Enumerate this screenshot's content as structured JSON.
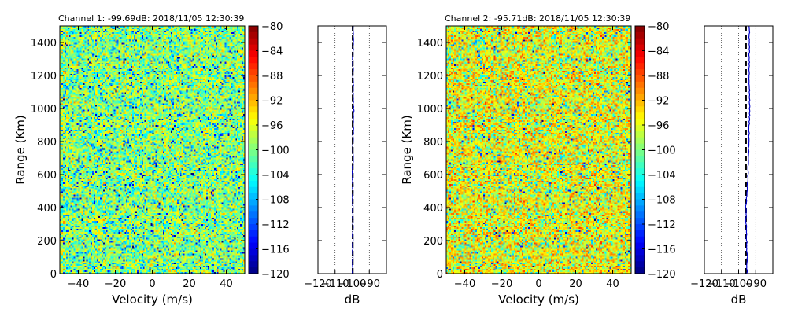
{
  "chart_data": [
    {
      "type": "heatmap",
      "title": "Channel 1: -99.69dB: 2018/11/05 12:30:39",
      "xlabel": "Velocity (m/s)",
      "ylabel": "Range (Km)",
      "xlim": [
        -50,
        50
      ],
      "ylim": [
        0,
        1500
      ],
      "xticks": [
        "−40",
        "−20",
        "0",
        "20",
        "40"
      ],
      "yticks": [
        "0",
        "200",
        "400",
        "600",
        "800",
        "1000",
        "1200",
        "1400"
      ],
      "colorbar": {
        "range": [
          -120,
          -80
        ],
        "ticks": [
          "−80",
          "−84",
          "−88",
          "−92",
          "−96",
          "−100",
          "−104",
          "−108",
          "−112",
          "−116",
          "−120"
        ],
        "colormap": "jet"
      },
      "mean_level_db": -99.69,
      "profile": {
        "xlabel": "dB",
        "xlim": [
          -120,
          -80
        ],
        "xticks": [
          "−120",
          "−110",
          "−100",
          "−90"
        ],
        "line_color": "#0000cc",
        "reference_db": -99.69,
        "range_km": [
          0,
          100,
          200,
          300,
          400,
          500,
          600,
          700,
          800,
          900,
          1000,
          1100,
          1200,
          1300,
          1400,
          1500
        ],
        "db_values": [
          -99.8,
          -99.6,
          -99.7,
          -99.5,
          -99.7,
          -99.6,
          -99.8,
          -99.5,
          -99.6,
          -99.3,
          -99.2,
          -99.4,
          -99.5,
          -99.6,
          -99.4,
          -99.5
        ]
      }
    },
    {
      "type": "heatmap",
      "title": "Channel 2: -95.71dB: 2018/11/05 12:30:39",
      "xlabel": "Velocity (m/s)",
      "ylabel": "Range (Km)",
      "xlim": [
        -50,
        50
      ],
      "ylim": [
        0,
        1500
      ],
      "xticks": [
        "−40",
        "−20",
        "0",
        "20",
        "40"
      ],
      "yticks": [
        "0",
        "200",
        "400",
        "600",
        "800",
        "1000",
        "1200",
        "1400"
      ],
      "colorbar": {
        "range": [
          -120,
          -80
        ],
        "ticks": [
          "−80",
          "−84",
          "−88",
          "−92",
          "−96",
          "−100",
          "−104",
          "−108",
          "−112",
          "−116",
          "−120"
        ],
        "colormap": "jet"
      },
      "mean_level_db": -95.71,
      "profile": {
        "xlabel": "dB",
        "xlim": [
          -120,
          -80
        ],
        "xticks": [
          "−120",
          "−110",
          "−100",
          "−90"
        ],
        "line_color": "#0000cc",
        "reference_db": -95.71,
        "range_km": [
          0,
          100,
          200,
          300,
          400,
          500,
          600,
          700,
          800,
          900,
          1000,
          1100,
          1200,
          1300,
          1400,
          1500
        ],
        "db_values": [
          -95.2,
          -95.0,
          -95.3,
          -95.6,
          -95.8,
          -95.1,
          -94.6,
          -94.3,
          -94.1,
          -93.8,
          -93.6,
          -93.7,
          -93.9,
          -93.8,
          -93.9,
          -93.7
        ]
      }
    }
  ]
}
